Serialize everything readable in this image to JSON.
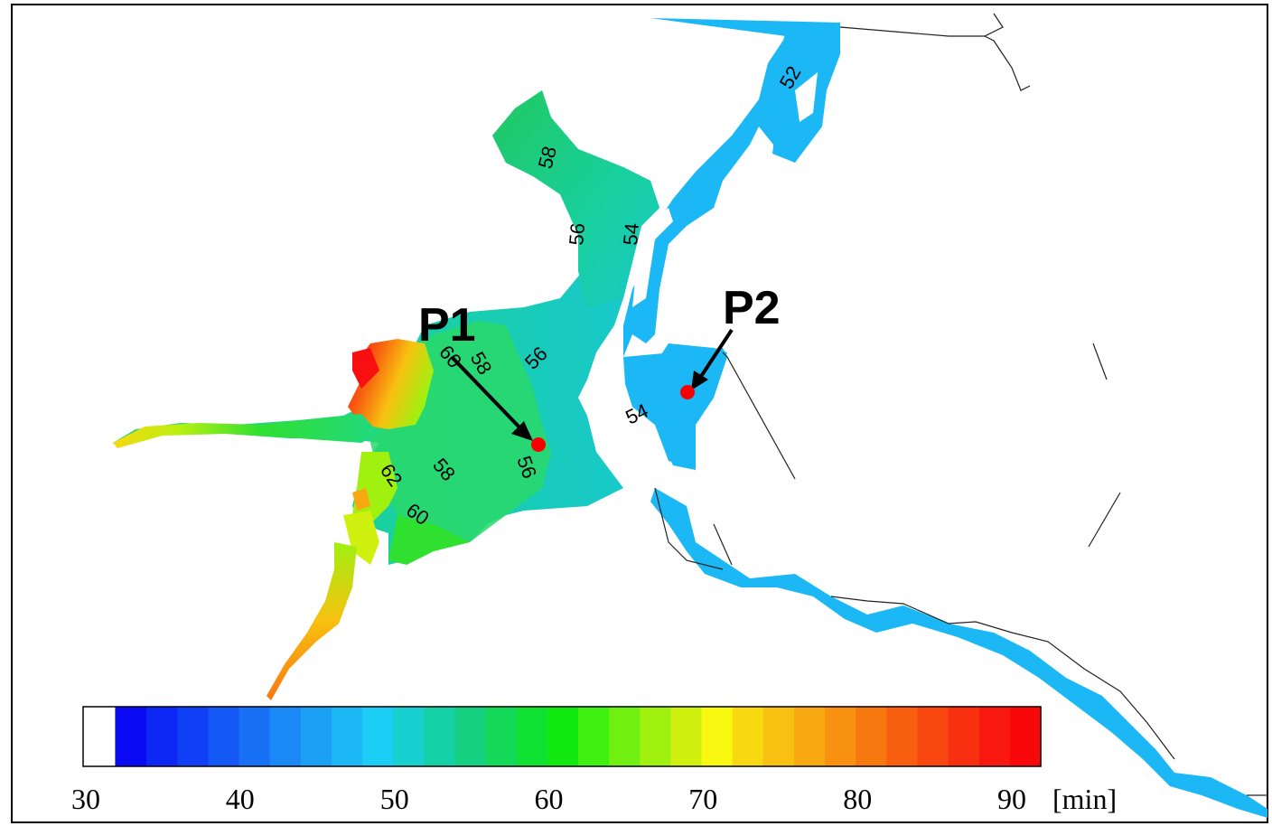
{
  "points": [
    {
      "label": "P1"
    },
    {
      "label": "P2"
    }
  ],
  "contours": [
    "52",
    "58",
    "56",
    "54",
    "58",
    "60",
    "56",
    "54",
    "62",
    "58",
    "56",
    "60"
  ],
  "colorbar": {
    "min": 30,
    "max": 90,
    "ticks": [
      "30",
      "40",
      "50",
      "60",
      "70",
      "80",
      "90"
    ],
    "unit": "[min]",
    "first_bin": "white",
    "colors": [
      "#0a0af5",
      "#0d28f5",
      "#1040f5",
      "#1458f5",
      "#1870f5",
      "#1a88f5",
      "#1ca0f5",
      "#1cb8f5",
      "#1ccdf5",
      "#18d0d0",
      "#16d0a8",
      "#14d080",
      "#14d858",
      "#10e030",
      "#10e810",
      "#40f010",
      "#70f010",
      "#a0f010",
      "#d0f010",
      "#f8f810",
      "#f8d810",
      "#f8c010",
      "#f8a810",
      "#f89010",
      "#f87810",
      "#f86010",
      "#f84810",
      "#f83010",
      "#f81810",
      "#f80808"
    ]
  }
}
